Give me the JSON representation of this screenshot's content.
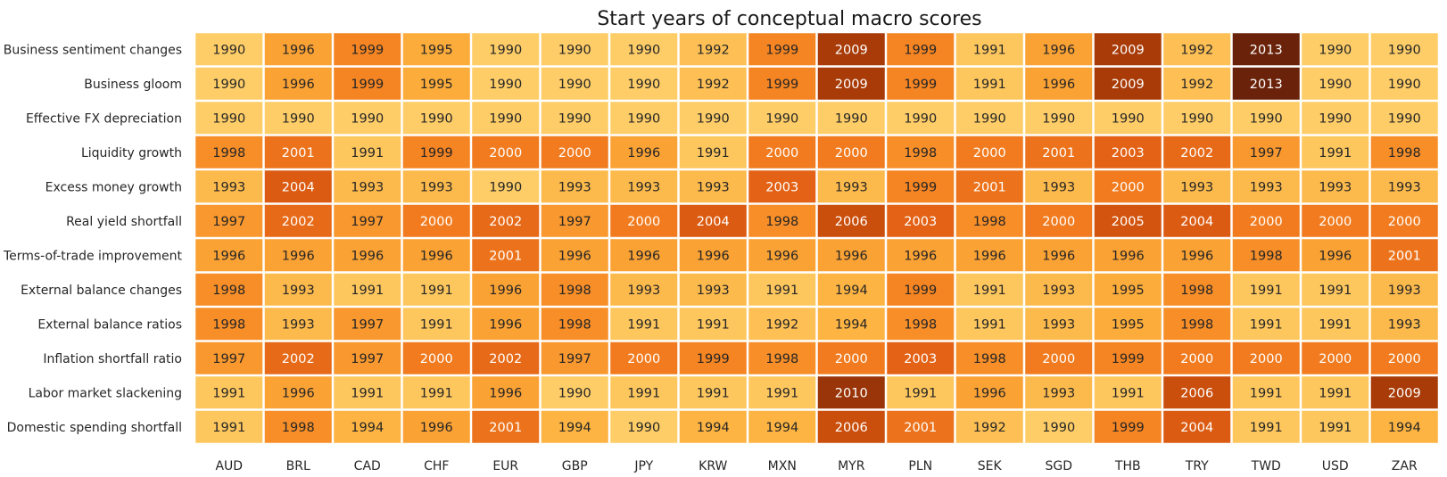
{
  "chart_data": {
    "type": "heatmap",
    "title": "Start years of conceptual macro scores",
    "xlabel": "",
    "ylabel": "",
    "colormap": "YlOrBr",
    "value_range": [
      1990,
      2013
    ],
    "columns": [
      "AUD",
      "BRL",
      "CAD",
      "CHF",
      "EUR",
      "GBP",
      "JPY",
      "KRW",
      "MXN",
      "MYR",
      "PLN",
      "SEK",
      "SGD",
      "THB",
      "TRY",
      "TWD",
      "USD",
      "ZAR"
    ],
    "rows": [
      "Business sentiment changes",
      "Business gloom",
      "Effective FX depreciation",
      "Liquidity growth",
      "Excess money growth",
      "Real yield shortfall",
      "Terms-of-trade improvement",
      "External balance changes",
      "External balance ratios",
      "Inflation shortfall ratio",
      "Labor market slackening",
      "Domestic spending shortfall"
    ],
    "values": [
      [
        1990,
        1996,
        1999,
        1995,
        1990,
        1990,
        1990,
        1992,
        1999,
        2009,
        1999,
        1991,
        1996,
        2009,
        1992,
        2013,
        1990,
        1990
      ],
      [
        1990,
        1996,
        1999,
        1995,
        1990,
        1990,
        1990,
        1992,
        1999,
        2009,
        1999,
        1991,
        1996,
        2009,
        1992,
        2013,
        1990,
        1990
      ],
      [
        1990,
        1990,
        1990,
        1990,
        1990,
        1990,
        1990,
        1990,
        1990,
        1990,
        1990,
        1990,
        1990,
        1990,
        1990,
        1990,
        1990,
        1990
      ],
      [
        1998,
        2001,
        1991,
        1999,
        2000,
        2000,
        1996,
        1991,
        2000,
        2000,
        1998,
        2000,
        2001,
        2003,
        2002,
        1997,
        1991,
        1998
      ],
      [
        1993,
        2004,
        1993,
        1993,
        1990,
        1993,
        1993,
        1993,
        2003,
        1993,
        1999,
        2001,
        1993,
        2000,
        1993,
        1993,
        1993,
        1993
      ],
      [
        1997,
        2002,
        1997,
        2000,
        2002,
        1997,
        2000,
        2004,
        1998,
        2006,
        2003,
        1998,
        2000,
        2005,
        2004,
        2000,
        2000,
        2000
      ],
      [
        1996,
        1996,
        1996,
        1996,
        2001,
        1996,
        1996,
        1996,
        1996,
        1996,
        1996,
        1996,
        1996,
        1996,
        1996,
        1998,
        1996,
        2001
      ],
      [
        1998,
        1993,
        1991,
        1991,
        1996,
        1998,
        1993,
        1993,
        1991,
        1994,
        1999,
        1991,
        1993,
        1995,
        1998,
        1991,
        1991,
        1993
      ],
      [
        1998,
        1993,
        1997,
        1991,
        1996,
        1998,
        1991,
        1991,
        1992,
        1994,
        1998,
        1991,
        1993,
        1995,
        1998,
        1991,
        1991,
        1993
      ],
      [
        1997,
        2002,
        1997,
        2000,
        2002,
        1997,
        2000,
        1999,
        1998,
        2000,
        2003,
        1998,
        2000,
        1999,
        2000,
        2000,
        2000,
        2000
      ],
      [
        1991,
        1996,
        1991,
        1991,
        1996,
        1990,
        1991,
        1991,
        1991,
        2010,
        1991,
        1996,
        1993,
        1991,
        2006,
        1991,
        1991,
        2009
      ],
      [
        1991,
        1998,
        1994,
        1996,
        2001,
        1994,
        1990,
        1994,
        1994,
        2006,
        2001,
        1992,
        1990,
        1999,
        2004,
        1991,
        1991,
        1994
      ]
    ]
  }
}
